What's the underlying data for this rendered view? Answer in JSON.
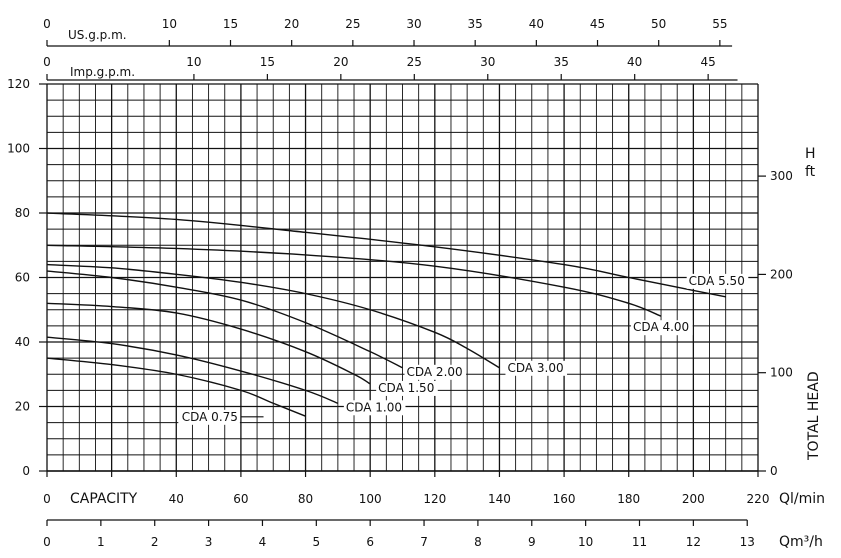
{
  "chart_data": {
    "type": "line",
    "title": "",
    "xlabel": "CAPACITY",
    "x_unit": "Ql/min",
    "x_unit_m3": "Qm³/h",
    "ylabel_right": "TOTAL HEAD",
    "yunit_right": [
      "H",
      "ft"
    ],
    "xlim": [
      0,
      220
    ],
    "ylim": [
      0,
      120
    ],
    "grid": true,
    "left_axis_ticks": [
      0,
      20,
      40,
      60,
      80,
      100,
      120
    ],
    "right_ft_ticks": [
      0,
      100,
      200,
      300
    ],
    "bottom_lmin_ticks": [
      0,
      20,
      40,
      60,
      80,
      100,
      120,
      140,
      160,
      180,
      200,
      220
    ],
    "bottom_m3h_ticks": [
      0,
      1,
      2,
      3,
      4,
      5,
      6,
      7,
      8,
      9,
      10,
      11,
      12,
      13
    ],
    "us_gpm_label": "US.g.p.m.",
    "us_gpm_ticks": [
      0,
      10,
      15,
      20,
      25,
      30,
      35,
      40,
      45,
      50,
      55
    ],
    "imp_gpm_label": "Imp.g.p.m.",
    "imp_gpm_ticks": [
      0,
      10,
      15,
      20,
      25,
      30,
      35,
      40,
      45
    ],
    "series": [
      {
        "name": "CDA 0.75",
        "x": [
          0,
          20,
          40,
          60,
          70,
          80
        ],
        "y": [
          35,
          33,
          30,
          25,
          21,
          17
        ]
      },
      {
        "name": "CDA 1.00",
        "x": [
          0,
          20,
          40,
          60,
          80,
          90
        ],
        "y": [
          41.5,
          39.5,
          36,
          31,
          25,
          21
        ]
      },
      {
        "name": "CDA 1.50",
        "x": [
          0,
          20,
          40,
          60,
          80,
          95,
          100
        ],
        "y": [
          52,
          51,
          49,
          44,
          37,
          30,
          27
        ]
      },
      {
        "name": "CDA 2.00",
        "x": [
          0,
          20,
          40,
          60,
          80,
          100,
          110
        ],
        "y": [
          62,
          60,
          57,
          53,
          46,
          37,
          32
        ]
      },
      {
        "name": "CDA 3.00",
        "x": [
          0,
          20,
          40,
          60,
          80,
          100,
          120,
          130,
          140
        ],
        "y": [
          64,
          63,
          61,
          58.5,
          55,
          50,
          43,
          38,
          32
        ]
      },
      {
        "name": "CDA 4.00",
        "x": [
          0,
          40,
          80,
          120,
          160,
          180,
          190
        ],
        "y": [
          70,
          69,
          67,
          63.5,
          57,
          52,
          48
        ]
      },
      {
        "name": "CDA 5.50",
        "x": [
          0,
          40,
          80,
          120,
          160,
          180,
          195,
          210
        ],
        "y": [
          80,
          78,
          74,
          69.5,
          64,
          60,
          57,
          54
        ]
      }
    ]
  }
}
